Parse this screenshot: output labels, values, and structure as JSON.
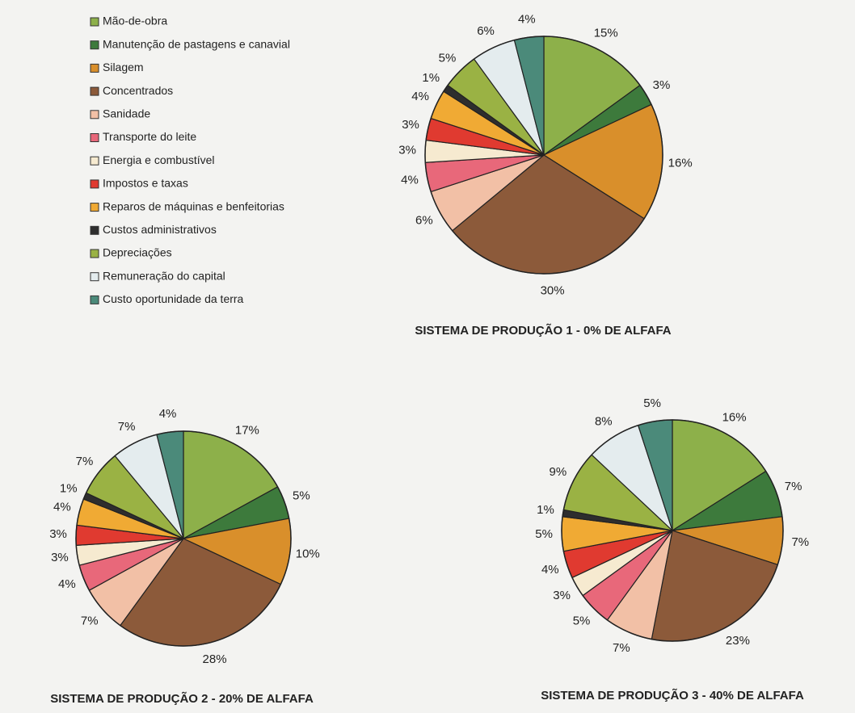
{
  "legend": {
    "labels": [
      "Mão-de-obra",
      "Manutenção de pastagens e canavial",
      "Silagem",
      "Concentrados",
      "Sanidade",
      "Transporte do leite",
      "Energia e combustível",
      "Impostos e taxas",
      "Reparos de máquinas e benfeitorias",
      "Custos administrativos",
      "Depreciações",
      "Remuneração do capital",
      "Custo oportunidade da terra"
    ],
    "colors": [
      "#8db04a",
      "#3d7a3c",
      "#d98f2b",
      "#8c5a3a",
      "#f2c0a6",
      "#e8687a",
      "#f6ead0",
      "#e03a30",
      "#f0aa34",
      "#2e2e2e",
      "#9ab244",
      "#e4ecee",
      "#4b8a7a"
    ]
  },
  "chart_data": [
    {
      "type": "pie",
      "title": "SISTEMA DE PRODUÇÃO 1 - 0% DE ALFAFA",
      "values": [
        15,
        3,
        16,
        30,
        6,
        4,
        3,
        3,
        4,
        1,
        5,
        6,
        4
      ],
      "value_labels": [
        "15%",
        "3%",
        "16%",
        "30%",
        "6%",
        "4%",
        "3%",
        "3%",
        "4%",
        "1%",
        "5%",
        "6%",
        "4%"
      ]
    },
    {
      "type": "pie",
      "title": "SISTEMA DE PRODUÇÃO 2 - 20% DE ALFAFA",
      "values": [
        17,
        5,
        10,
        28,
        7,
        4,
        3,
        3,
        4,
        1,
        7,
        7,
        4
      ],
      "value_labels": [
        "17%",
        "5%",
        "10%",
        "28%",
        "7%",
        "4%",
        "3%",
        "3%",
        "4%",
        "1%",
        "7%",
        "7%",
        "4%"
      ]
    },
    {
      "type": "pie",
      "title": "SISTEMA DE PRODUÇÃO 3 - 40% DE ALFAFA",
      "values": [
        16,
        7,
        7,
        23,
        7,
        5,
        3,
        4,
        5,
        1,
        9,
        8,
        5
      ],
      "value_labels": [
        "16%",
        "7%",
        "7%",
        "23%",
        "7%",
        "5%",
        "3%",
        "4%",
        "5%",
        "1%",
        "9%",
        "8%",
        "5%"
      ]
    }
  ]
}
